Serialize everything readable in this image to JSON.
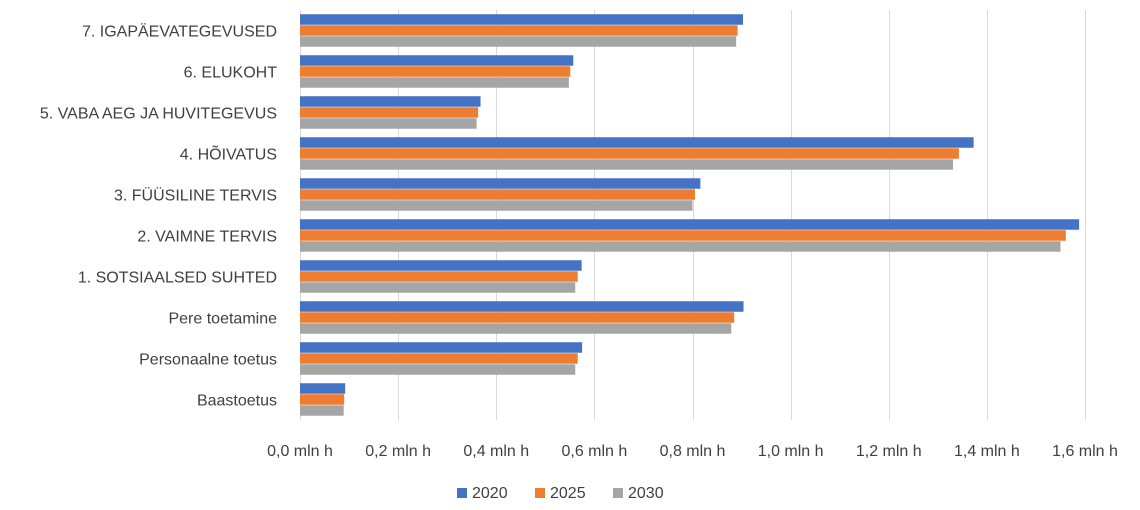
{
  "chart_data": {
    "type": "bar",
    "orientation": "horizontal",
    "categories": [
      "7. IGAPÄEVATEGEVUSED",
      "6. ELUKOHT",
      "5. VABA AEG JA HUVITEGEVUS",
      "4. HÕIVATUS",
      "3. FÜÜSILINE TERVIS",
      "2. VAIMNE TERVIS",
      "1. SOTSIAALSED SUHTED",
      "Pere toetamine",
      "Personaalne toetus",
      "Baastoetus"
    ],
    "series": [
      {
        "name": "2020",
        "color": "#4472c4",
        "values": [
          0.903,
          0.557,
          0.368,
          1.373,
          0.816,
          1.588,
          0.574,
          0.904,
          0.575,
          0.092
        ]
      },
      {
        "name": "2025",
        "color": "#ed7d31",
        "values": [
          0.892,
          0.551,
          0.363,
          1.343,
          0.805,
          1.561,
          0.566,
          0.885,
          0.566,
          0.09
        ]
      },
      {
        "name": "2030",
        "color": "#a5a5a5",
        "values": [
          0.889,
          0.548,
          0.36,
          1.331,
          0.8,
          1.55,
          0.561,
          0.879,
          0.561,
          0.089
        ]
      }
    ],
    "xlim": [
      0,
      1.6
    ],
    "x_ticks": [
      0,
      0.2,
      0.4,
      0.6,
      0.8,
      1.0,
      1.2,
      1.4,
      1.6
    ],
    "x_tick_labels": [
      "0,0 mln h",
      "0,2 mln h",
      "0,4 mln h",
      "0,6 mln h",
      "0,8 mln h",
      "1,0 mln h",
      "1,2 mln h",
      "1,4 mln h",
      "1,6 mln h"
    ],
    "grid": true,
    "legend_position": "bottom",
    "title": "",
    "xlabel": "",
    "ylabel": ""
  }
}
